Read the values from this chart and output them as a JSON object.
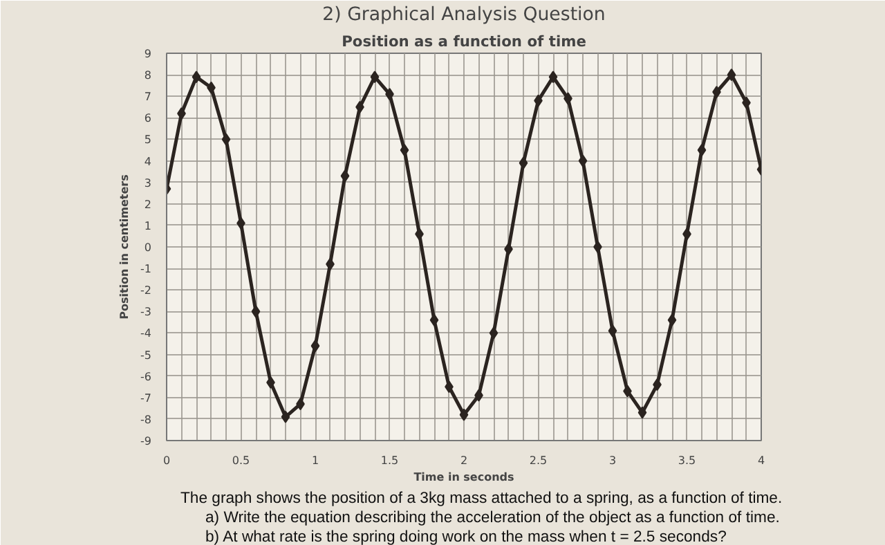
{
  "chart_data": {
    "type": "line",
    "title": "2) Graphical Analysis Question",
    "subtitle": "Position as a function of time",
    "xlabel": "Time in seconds",
    "ylabel": "Position in centimeters",
    "x": [
      0,
      0.1,
      0.2,
      0.3,
      0.4,
      0.5,
      0.6,
      0.7,
      0.8,
      0.9,
      1.0,
      1.1,
      1.2,
      1.3,
      1.4,
      1.5,
      1.6,
      1.7,
      1.8,
      1.9,
      2.0,
      2.1,
      2.2,
      2.3,
      2.4,
      2.5,
      2.6,
      2.7,
      2.8,
      2.9,
      3.0,
      3.1,
      3.2,
      3.3,
      3.4,
      3.5,
      3.6,
      3.7,
      3.8,
      3.9,
      4.0
    ],
    "series": [
      {
        "color": "#2b2420",
        "values": [
          2.7,
          6.2,
          7.9,
          7.4,
          5.0,
          1.1,
          -3.0,
          -6.3,
          -7.9,
          -7.3,
          -4.6,
          -0.8,
          3.3,
          6.5,
          7.9,
          7.1,
          4.5,
          0.6,
          -3.4,
          -6.5,
          -7.8,
          -6.9,
          -4.0,
          -0.1,
          3.9,
          6.8,
          7.9,
          6.9,
          4.0,
          0.0,
          -3.9,
          -6.7,
          -7.7,
          -6.4,
          -3.4,
          0.6,
          4.5,
          7.2,
          8.0,
          6.7,
          3.6
        ]
      }
    ],
    "xlim": [
      0,
      4
    ],
    "ylim": [
      -9,
      9
    ],
    "xticks": [
      0,
      {
        "value": 0.1,
        "label": null
      },
      {
        "value": 0.2,
        "label": null
      },
      {
        "value": 0.3,
        "label": null
      },
      {
        "value": 0.4,
        "label": null
      },
      0.5,
      {
        "value": 0.6,
        "label": null
      },
      {
        "value": 0.7,
        "label": null
      },
      {
        "value": 0.8,
        "label": null
      },
      {
        "value": 0.9,
        "label": null
      },
      1,
      {
        "value": 1.1,
        "label": null
      },
      {
        "value": 1.2,
        "label": null
      },
      {
        "value": 1.3,
        "label": null
      },
      {
        "value": 1.4,
        "label": null
      },
      1.5,
      {
        "value": 1.6,
        "label": null
      },
      {
        "value": 1.7,
        "label": null
      },
      {
        "value": 1.8,
        "label": null
      },
      {
        "value": 1.9,
        "label": null
      },
      2,
      {
        "value": 2.1,
        "label": null
      },
      {
        "value": 2.2,
        "label": null
      },
      {
        "value": 2.3,
        "label": null
      },
      {
        "value": 2.4,
        "label": null
      },
      2.5,
      {
        "value": 2.6,
        "label": null
      },
      {
        "value": 2.7,
        "label": null
      },
      {
        "value": 2.8,
        "label": null
      },
      {
        "value": 2.9,
        "label": null
      },
      3,
      {
        "value": 3.1,
        "label": null
      },
      {
        "value": 3.2,
        "label": null
      },
      {
        "value": 3.3,
        "label": null
      },
      {
        "value": 3.4,
        "label": null
      },
      3.5,
      {
        "value": 3.6,
        "label": null
      },
      {
        "value": 3.7,
        "label": null
      },
      {
        "value": 3.8,
        "label": null
      },
      {
        "value": 3.9,
        "label": null
      },
      4
    ],
    "yticks": [
      -9,
      -8,
      -7,
      -6,
      -5,
      -4,
      -3,
      -2,
      -1,
      0,
      1,
      2,
      3,
      4,
      5,
      6,
      7,
      8,
      9
    ],
    "grid": true,
    "marker": "diamond",
    "line_style": "solid",
    "annotations": [
      "The graph shows the position of a 3kg mass attached to a spring, as a function of time.",
      "a) Write the equation describing the acceleration of the object as a function of time.",
      "b) At what rate is the spring doing work on the mass when t = 2.5 seconds?"
    ]
  }
}
